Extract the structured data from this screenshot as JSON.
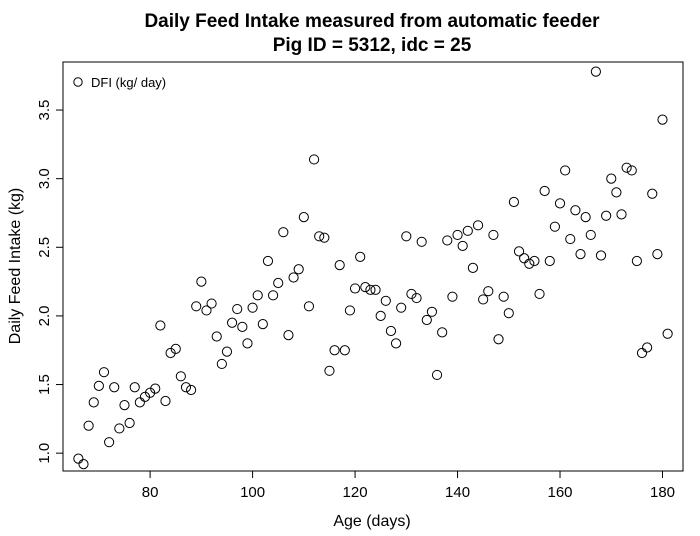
{
  "chart_data": {
    "type": "scatter",
    "title": "Daily Feed Intake measured from automatic feeder",
    "subtitle": "Pig ID = 5312, idc = 25",
    "xlabel": "Age (days)",
    "ylabel": "Daily Feed Intake (kg)",
    "xlim": [
      63,
      184
    ],
    "ylim": [
      0.87,
      3.85
    ],
    "xticks": [
      80,
      100,
      120,
      140,
      160,
      180
    ],
    "yticks": [
      1.0,
      1.5,
      2.0,
      2.5,
      3.0,
      3.5
    ],
    "xtick_labels": [
      "80",
      "100",
      "120",
      "140",
      "160",
      "180"
    ],
    "ytick_labels": [
      "1.0",
      "1.5",
      "2.0",
      "2.5",
      "3.0",
      "3.5"
    ],
    "legend": {
      "position": "top-left",
      "label": "DFI (kg/ day)",
      "marker": "open-circle"
    },
    "grid": false,
    "series": [
      {
        "name": "DFI (kg/ day)",
        "x": [
          66,
          67,
          68,
          69,
          70,
          71,
          72,
          73,
          74,
          75,
          76,
          77,
          78,
          79,
          80,
          81,
          82,
          83,
          84,
          85,
          86,
          87,
          88,
          89,
          90,
          91,
          92,
          93,
          94,
          95,
          96,
          97,
          98,
          99,
          100,
          101,
          102,
          103,
          104,
          105,
          106,
          107,
          108,
          109,
          110,
          111,
          112,
          113,
          114,
          115,
          116,
          117,
          118,
          119,
          120,
          121,
          122,
          123,
          124,
          125,
          126,
          127,
          128,
          129,
          130,
          131,
          132,
          133,
          134,
          135,
          136,
          137,
          138,
          139,
          140,
          141,
          142,
          143,
          144,
          145,
          146,
          147,
          148,
          149,
          150,
          151,
          152,
          153,
          154,
          155,
          156,
          157,
          158,
          159,
          160,
          161,
          162,
          163,
          164,
          165,
          166,
          167,
          168,
          169,
          170,
          171,
          172,
          173,
          174,
          175,
          176,
          177,
          178,
          179,
          180,
          181
        ],
        "y": [
          0.96,
          0.92,
          1.2,
          1.37,
          1.49,
          1.59,
          1.08,
          1.48,
          1.18,
          1.35,
          1.22,
          1.48,
          1.37,
          1.41,
          1.44,
          1.47,
          1.93,
          1.38,
          1.73,
          1.76,
          1.56,
          1.48,
          1.46,
          2.07,
          2.25,
          2.04,
          2.09,
          1.85,
          1.65,
          1.74,
          1.95,
          2.05,
          1.92,
          1.8,
          2.06,
          2.15,
          1.94,
          2.4,
          2.15,
          2.24,
          2.61,
          1.86,
          2.28,
          2.34,
          2.72,
          2.07,
          3.14,
          2.58,
          2.57,
          1.6,
          1.75,
          2.37,
          1.75,
          2.04,
          2.2,
          2.43,
          2.21,
          2.19,
          2.19,
          2.0,
          2.11,
          1.89,
          1.8,
          2.06,
          2.58,
          2.16,
          2.13,
          2.54,
          1.97,
          2.03,
          1.57,
          1.88,
          2.55,
          2.14,
          2.59,
          2.51,
          2.62,
          2.35,
          2.66,
          2.12,
          2.18,
          2.59,
          1.83,
          2.14,
          2.02,
          2.83,
          2.47,
          2.42,
          2.38,
          2.4,
          2.16,
          2.91,
          2.4,
          2.65,
          2.82,
          3.06,
          2.56,
          2.77,
          2.45,
          2.72,
          2.59,
          3.78,
          2.44,
          2.73,
          3.0,
          2.9,
          2.74,
          3.08,
          3.06,
          2.4,
          1.73,
          1.77,
          2.89,
          2.45,
          3.43,
          1.87
        ]
      }
    ]
  }
}
